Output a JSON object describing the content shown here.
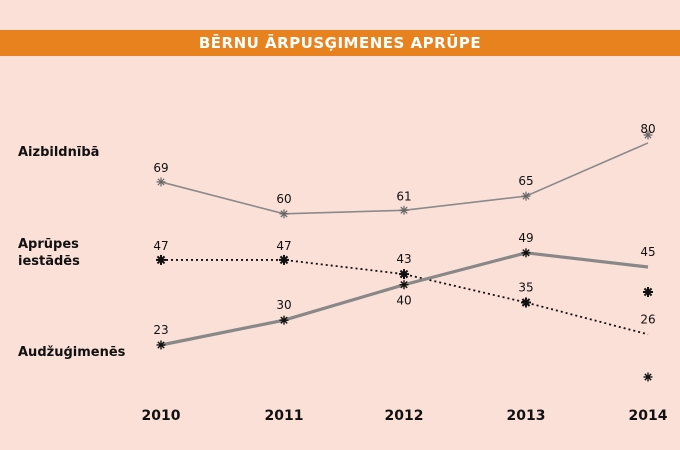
{
  "chart_data": {
    "type": "line",
    "title": "BĒRNU ĀRPUSĢIMENES APRŪPE",
    "x": [
      "2010",
      "2011",
      "2012",
      "2013",
      "2014"
    ],
    "series": [
      {
        "name": "Aizbildnībā",
        "values": [
          69,
          60,
          61,
          65,
          80
        ],
        "color": "#8a8a8a",
        "style": "thin-solid"
      },
      {
        "name": "Aprūpes iestādēs",
        "values": [
          47,
          47,
          43,
          35,
          26
        ],
        "color": "#111111",
        "style": "dotted"
      },
      {
        "name": "Audžuģimenēs",
        "values": [
          23,
          30,
          40,
          49,
          45
        ],
        "color": "#888888",
        "style": "thick-solid"
      }
    ],
    "row_labels": [
      {
        "lines": [
          "Aizbildnībā"
        ]
      },
      {
        "lines": [
          "Aprūpes",
          "iestādēs"
        ]
      },
      {
        "lines": [
          "Audžuģimenēs"
        ]
      }
    ],
    "legend": "left",
    "grid": false,
    "colors": {
      "title_bar": "#e8821f",
      "background": "#fbe0d8"
    }
  }
}
